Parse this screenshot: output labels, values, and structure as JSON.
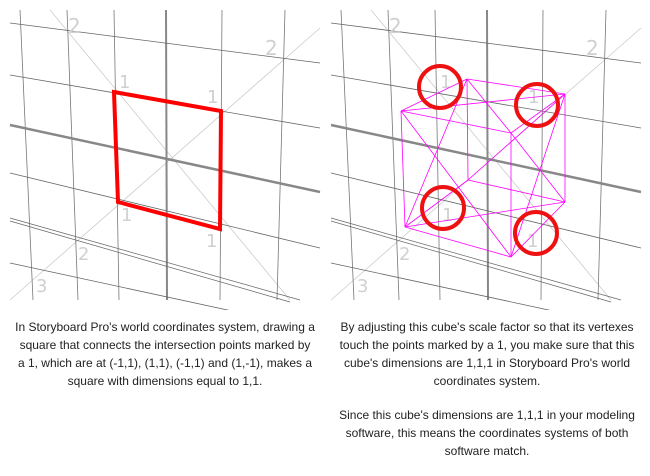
{
  "left": {
    "grid_labels": [
      "2",
      "2",
      "1",
      "1",
      "1",
      "1",
      "2",
      "3"
    ],
    "caption": "In Storyboard Pro's world coordinates system, drawing a square that connects the intersection points marked by a 1, which are at (-1,1), (1,1), (-1,1) and (1,-1), makes a square with dimensions equal to 1,1.",
    "square_color": "#ff0000"
  },
  "right": {
    "grid_labels": [
      "2",
      "2",
      "1",
      "1",
      "1",
      "1",
      "2",
      "3"
    ],
    "caption_1": "By adjusting this cube's scale factor so that its vertexes touch the points marked by a 1, you make sure that this cube's dimensions are 1,1,1 in Storyboard Pro's world coordinates system.",
    "caption_2": "Since this cube's dimensions are 1,1,1 in your modeling software, this means the coordinates systems of both software match.",
    "circle_color": "#ee1111",
    "cube_color": "#ff00ff"
  }
}
